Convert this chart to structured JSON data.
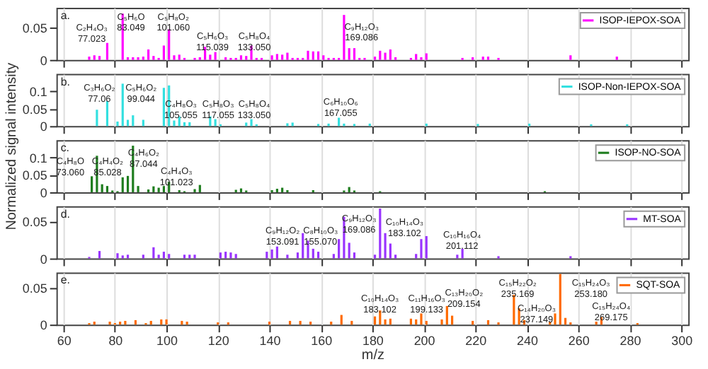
{
  "chart_data": [
    {
      "type": "bar",
      "title": "a.",
      "x": [
        70,
        72,
        74,
        77,
        83,
        85,
        87,
        89,
        91,
        93,
        95,
        97,
        99,
        101,
        103,
        105,
        107,
        111,
        113,
        115,
        117,
        119,
        123,
        125,
        127,
        129,
        131,
        133,
        135,
        137,
        141,
        143,
        145,
        147,
        149,
        151,
        153,
        155,
        157,
        159,
        161,
        163,
        165,
        167,
        169,
        171,
        173,
        175,
        177,
        181,
        183,
        185,
        187,
        189,
        195,
        197,
        199,
        201,
        215,
        219,
        223,
        225,
        229,
        257,
        275
      ],
      "series": [
        {
          "name": "ISOP-IEPOX-SOA",
          "color": "#ff00ff",
          "values": [
            0.005,
            0.007,
            0.006,
            0.026,
            0.071,
            0.004,
            0.004,
            0.004,
            0.005,
            0.016,
            0.006,
            0.003,
            0.022,
            0.047,
            0.007,
            0.008,
            0.003,
            0.003,
            0.004,
            0.02,
            0.008,
            0.012,
            0.004,
            0.003,
            0.003,
            0.007,
            0.006,
            0.022,
            0.003,
            0.003,
            0.007,
            0.009,
            0.008,
            0.011,
            0.003,
            0.003,
            0.003,
            0.014,
            0.013,
            0.013,
            0.007,
            0.003,
            0.003,
            0.003,
            0.069,
            0.018,
            0.018,
            0.003,
            0.003,
            0.005,
            0.014,
            0.011,
            0.016,
            0.004,
            0.003,
            0.009,
            0.004,
            0.01,
            0.003,
            0.004,
            0.005,
            0.005,
            0.003,
            0.007,
            0.005
          ]
        }
      ],
      "xlim": [
        60,
        300
      ],
      "xticks": [
        60,
        80,
        100,
        120,
        140,
        160,
        180,
        200,
        220,
        240,
        260,
        280,
        300
      ],
      "ylim": [
        0,
        0.08
      ],
      "yticks": [
        0,
        0.05
      ],
      "grid": "x",
      "legend": "top right",
      "tick_labels": "y",
      "annotations": [
        "C₂H₄O₃\n77.023",
        "C₅H₆O\n83.049",
        "C₅H₈O₂\n101.060",
        "C₅H₆O₃\n115.039",
        "C₅H₈O₄\n133.050",
        "C₉H₁₂O₃\n169.086"
      ]
    },
    {
      "type": "bar",
      "title": "b.",
      "x": [
        73,
        77,
        81,
        83,
        85,
        87,
        91,
        99,
        101,
        103,
        105,
        107,
        109,
        117,
        119,
        121,
        131,
        133,
        135,
        147,
        149,
        159,
        163,
        167,
        169,
        173,
        179,
        201,
        221,
        241,
        265,
        279
      ],
      "series": [
        {
          "name": "ISOP-Non-IEPOX-SOA",
          "color": "#33e0e0",
          "values": [
            0.047,
            0.072,
            0.013,
            0.122,
            0.018,
            0.031,
            0.018,
            0.11,
            0.117,
            0.016,
            0.028,
            0.011,
            0.011,
            0.028,
            0.02,
            0.005,
            0.01,
            0.02,
            0.005,
            0.008,
            0.01,
            0.006,
            0.007,
            0.024,
            0.007,
            0.006,
            0.007,
            0.007,
            0.006,
            0.007,
            0.005,
            0.005
          ]
        }
      ],
      "xlim": [
        60,
        300
      ],
      "xticks": [
        60,
        80,
        100,
        120,
        140,
        160,
        180,
        200,
        220,
        240,
        260,
        280,
        300
      ],
      "ylim": [
        0,
        0.15
      ],
      "yticks": [
        0,
        0.05,
        0.1
      ],
      "grid": "x",
      "legend": "top right",
      "tick_labels": "y",
      "annotations": [
        "C₃H₆O₂\n77.06",
        "C₅H₆O₂\n99.044",
        "C₄H₈O₃\n105.055",
        "C₅H₈O₃\n117.055",
        "C₅H₈O₄\n133.050",
        "C₆H₁₀O₆\n167.055"
      ]
    },
    {
      "type": "bar",
      "title": "c.",
      "ylabel": "Normalized signal intensity",
      "x": [
        71,
        73,
        75,
        77,
        79,
        81,
        83,
        85,
        87,
        89,
        93,
        95,
        97,
        99,
        101,
        105,
        107,
        111,
        113,
        127,
        129,
        131,
        141,
        143,
        145,
        147,
        157,
        169,
        171,
        173,
        183,
        247
      ],
      "series": [
        {
          "name": "ISOP-NO-SOA",
          "color": "#1e7d1e",
          "values": [
            0.046,
            0.105,
            0.023,
            0.018,
            0.005,
            0.003,
            0.043,
            0.047,
            0.134,
            0.018,
            0.008,
            0.017,
            0.013,
            0.018,
            0.03,
            0.006,
            0.003,
            0.009,
            0.021,
            0.007,
            0.011,
            0.005,
            0.006,
            0.01,
            0.013,
            0.006,
            0.006,
            0.005,
            0.015,
            0.005,
            0.003,
            0.003
          ]
        }
      ],
      "xlim": [
        60,
        300
      ],
      "xticks": [
        60,
        80,
        100,
        120,
        140,
        160,
        180,
        200,
        220,
        240,
        260,
        280,
        300
      ],
      "ylim": [
        0,
        0.15
      ],
      "yticks": [
        0,
        0.05,
        0.1
      ],
      "grid": "x",
      "legend": "top right",
      "tick_labels": "y",
      "annotations": [
        "C₄H₈O\n73.060",
        "C₄H₄O₂\n85.028",
        "C₄H₆O₂\n87.044",
        "C₄H₄O₃\n101.023"
      ]
    },
    {
      "type": "bar",
      "title": "d.",
      "x": [
        70,
        74,
        81,
        83,
        85,
        91,
        95,
        97,
        99,
        101,
        107,
        109,
        111,
        121,
        123,
        125,
        127,
        139,
        141,
        143,
        147,
        151,
        153,
        155,
        157,
        159,
        165,
        167,
        169,
        171,
        173,
        181,
        183,
        185,
        187,
        189,
        197,
        199,
        201,
        213,
        215,
        229,
        257
      ],
      "series": [
        {
          "name": "MT-SOA",
          "color": "#9933ff",
          "values": [
            0.002,
            0.01,
            0.007,
            0.004,
            0.005,
            0.005,
            0.015,
            0.005,
            0.009,
            0.006,
            0.005,
            0.005,
            0.005,
            0.008,
            0.009,
            0.008,
            0.006,
            0.009,
            0.012,
            0.016,
            0.005,
            0.008,
            0.034,
            0.024,
            0.013,
            0.009,
            0.006,
            0.026,
            0.056,
            0.021,
            0.008,
            0.005,
            0.067,
            0.034,
            0.02,
            0.005,
            0.006,
            0.026,
            0.03,
            0.005,
            0.013,
            0.003,
            0.003
          ]
        }
      ],
      "xlim": [
        60,
        300
      ],
      "xticks": [
        60,
        80,
        100,
        120,
        140,
        160,
        180,
        200,
        220,
        240,
        260,
        280,
        300
      ],
      "ylim": [
        0,
        0.07
      ],
      "yticks": [
        0,
        0.05
      ],
      "grid": "x",
      "legend": "top right",
      "tick_labels": "y",
      "annotations": [
        "C₉H₁₂O₂\n153.091",
        "C₈H₁₀O₃\n155.070",
        "C₉H₁₂O₃\n169.086",
        "C₁₀H₁₄O₃\n183.102",
        "C₁₀H₁₆O₄\n201.112"
      ]
    },
    {
      "type": "bar",
      "title": "e.",
      "xlabel": "m/z",
      "x": [
        70,
        72,
        78,
        80,
        82,
        84,
        88,
        92,
        94,
        98,
        100,
        106,
        108,
        120,
        124,
        140,
        148,
        152,
        156,
        164,
        168,
        172,
        181,
        183,
        185,
        187,
        195,
        197,
        199,
        201,
        207,
        209,
        211,
        219,
        225,
        229,
        235,
        237,
        239,
        249,
        251,
        253,
        255,
        257,
        267,
        269,
        283
      ],
      "series": [
        {
          "name": "SQT-SOA",
          "color": "#ff6a00",
          "values": [
            0.002,
            0.004,
            0.004,
            0.002,
            0.004,
            0.005,
            0.006,
            0.002,
            0.005,
            0.007,
            0.007,
            0.005,
            0.004,
            0.003,
            0.003,
            0.004,
            0.005,
            0.005,
            0.004,
            0.004,
            0.013,
            0.005,
            0.011,
            0.019,
            0.007,
            0.008,
            0.008,
            0.007,
            0.015,
            0.005,
            0.007,
            0.025,
            0.012,
            0.005,
            0.006,
            0.003,
            0.04,
            0.022,
            0.006,
            0.004,
            0.015,
            0.068,
            0.009,
            0.003,
            0.004,
            0.01,
            0.002
          ]
        }
      ],
      "xlim": [
        60,
        300
      ],
      "xticks": [
        60,
        80,
        100,
        120,
        140,
        160,
        180,
        200,
        220,
        240,
        260,
        280,
        300
      ],
      "ylim": [
        0,
        0.07
      ],
      "yticks": [
        0,
        0.05
      ],
      "grid": "x",
      "legend": "top right",
      "annotations": [
        "C₁₀H₁₄O₃\n183.102",
        "C₁₁H₁₆O₃\n199.133",
        "C₁₃H₂₀O₂\n209.154",
        "C₁₅H₂₂O₂\n235.169",
        "C₁₄H₂₀O₃\n237.149",
        "C₁₅H₂₄O₃\n253.180",
        "C₁₅H₂₄O₄\n269.175"
      ]
    }
  ]
}
